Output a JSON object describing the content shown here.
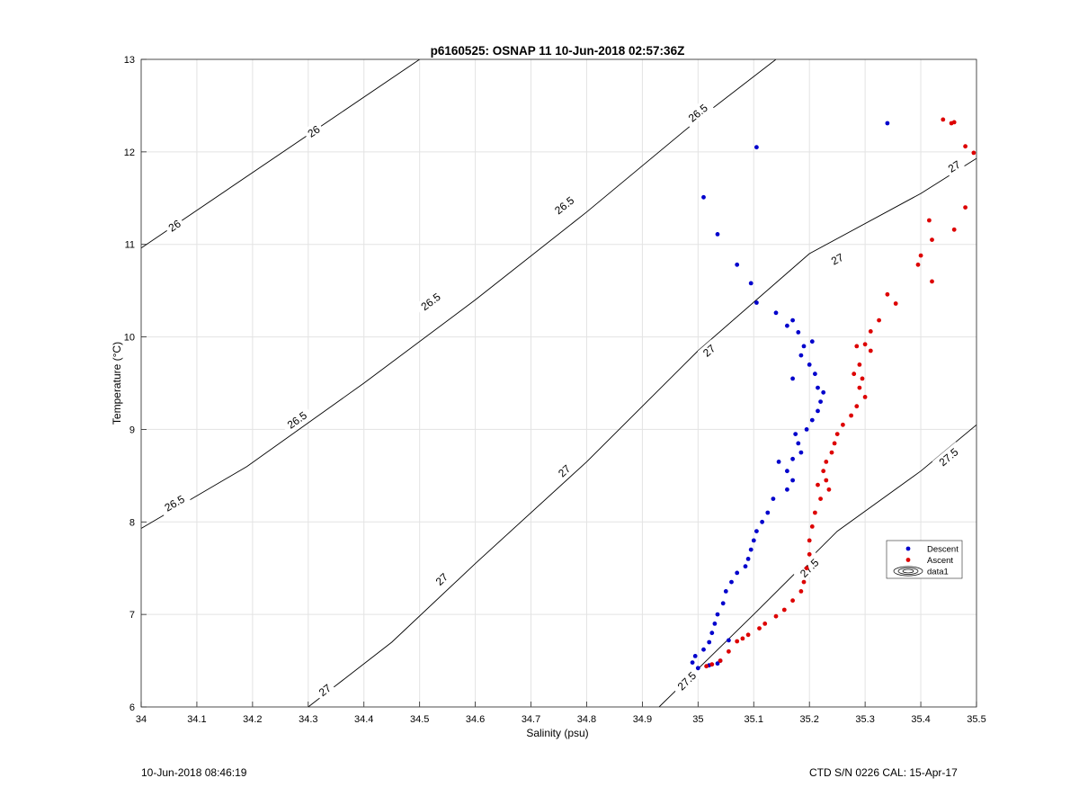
{
  "chart_data": {
    "type": "scatter",
    "title": "p6160525: OSNAP 11 10-Jun-2018 02:57:36Z",
    "xlabel": "Salinity (psu)",
    "ylabel": "Temperature (°C)",
    "xlim": [
      34,
      35.5
    ],
    "ylim": [
      6,
      13
    ],
    "xticks": [
      "34",
      "34.1",
      "34.2",
      "34.3",
      "34.4",
      "34.5",
      "34.6",
      "34.7",
      "34.8",
      "34.9",
      "35",
      "35.1",
      "35.2",
      "35.3",
      "35.4",
      "35.5"
    ],
    "yticks": [
      "6",
      "7",
      "8",
      "9",
      "10",
      "11",
      "12",
      "13"
    ],
    "grid": true,
    "legend_position": "right",
    "series": [
      {
        "name": "Descent",
        "color": "#0000cc",
        "points": [
          [
            35.34,
            12.31
          ],
          [
            35.105,
            12.05
          ],
          [
            35.01,
            11.51
          ],
          [
            35.035,
            11.11
          ],
          [
            35.07,
            10.78
          ],
          [
            35.095,
            10.58
          ],
          [
            35.105,
            10.37
          ],
          [
            35.14,
            10.26
          ],
          [
            35.16,
            10.12
          ],
          [
            35.17,
            10.18
          ],
          [
            35.18,
            10.05
          ],
          [
            35.19,
            9.9
          ],
          [
            35.205,
            9.95
          ],
          [
            35.185,
            9.8
          ],
          [
            35.2,
            9.7
          ],
          [
            35.21,
            9.6
          ],
          [
            35.17,
            9.55
          ],
          [
            35.215,
            9.45
          ],
          [
            35.225,
            9.4
          ],
          [
            35.22,
            9.3
          ],
          [
            35.215,
            9.2
          ],
          [
            35.205,
            9.1
          ],
          [
            35.195,
            9.0
          ],
          [
            35.175,
            8.95
          ],
          [
            35.18,
            8.85
          ],
          [
            35.185,
            8.75
          ],
          [
            35.17,
            8.68
          ],
          [
            35.145,
            8.65
          ],
          [
            35.16,
            8.55
          ],
          [
            35.17,
            8.45
          ],
          [
            35.16,
            8.35
          ],
          [
            35.135,
            8.25
          ],
          [
            35.125,
            8.1
          ],
          [
            35.115,
            8.0
          ],
          [
            35.105,
            7.9
          ],
          [
            35.1,
            7.8
          ],
          [
            35.095,
            7.7
          ],
          [
            35.09,
            7.6
          ],
          [
            35.085,
            7.52
          ],
          [
            35.07,
            7.45
          ],
          [
            35.06,
            7.35
          ],
          [
            35.05,
            7.25
          ],
          [
            35.045,
            7.12
          ],
          [
            35.035,
            7.0
          ],
          [
            35.03,
            6.9
          ],
          [
            35.025,
            6.8
          ],
          [
            35.02,
            6.7
          ],
          [
            35.01,
            6.62
          ],
          [
            34.995,
            6.55
          ],
          [
            34.99,
            6.48
          ],
          [
            35.0,
            6.42
          ],
          [
            35.02,
            6.45
          ],
          [
            35.035,
            6.47
          ],
          [
            35.055,
            6.72
          ],
          [
            35.04,
            6.5
          ]
        ]
      },
      {
        "name": "Ascent",
        "color": "#dd0000",
        "points": [
          [
            35.44,
            12.35
          ],
          [
            35.46,
            12.32
          ],
          [
            35.455,
            12.31
          ],
          [
            35.48,
            12.06
          ],
          [
            35.495,
            11.99
          ],
          [
            35.48,
            11.4
          ],
          [
            35.415,
            11.26
          ],
          [
            35.42,
            11.05
          ],
          [
            35.46,
            11.16
          ],
          [
            35.4,
            10.88
          ],
          [
            35.395,
            10.78
          ],
          [
            35.42,
            10.6
          ],
          [
            35.34,
            10.46
          ],
          [
            35.355,
            10.36
          ],
          [
            35.325,
            10.18
          ],
          [
            35.31,
            10.06
          ],
          [
            35.3,
            9.92
          ],
          [
            35.285,
            9.9
          ],
          [
            35.31,
            9.85
          ],
          [
            35.29,
            9.7
          ],
          [
            35.28,
            9.6
          ],
          [
            35.295,
            9.55
          ],
          [
            35.29,
            9.45
          ],
          [
            35.3,
            9.35
          ],
          [
            35.285,
            9.25
          ],
          [
            35.275,
            9.15
          ],
          [
            35.26,
            9.05
          ],
          [
            35.25,
            8.95
          ],
          [
            35.245,
            8.85
          ],
          [
            35.24,
            8.75
          ],
          [
            35.23,
            8.65
          ],
          [
            35.225,
            8.55
          ],
          [
            35.23,
            8.45
          ],
          [
            35.215,
            8.4
          ],
          [
            35.235,
            8.35
          ],
          [
            35.22,
            8.25
          ],
          [
            35.21,
            8.1
          ],
          [
            35.205,
            7.95
          ],
          [
            35.2,
            7.8
          ],
          [
            35.2,
            7.65
          ],
          [
            35.195,
            7.5
          ],
          [
            35.19,
            7.35
          ],
          [
            35.185,
            7.25
          ],
          [
            35.17,
            7.15
          ],
          [
            35.155,
            7.05
          ],
          [
            35.14,
            6.98
          ],
          [
            35.12,
            6.9
          ],
          [
            35.11,
            6.85
          ],
          [
            35.09,
            6.78
          ],
          [
            35.08,
            6.74
          ],
          [
            35.07,
            6.71
          ],
          [
            35.055,
            6.6
          ],
          [
            35.04,
            6.5
          ],
          [
            35.025,
            6.46
          ],
          [
            35.015,
            6.44
          ]
        ]
      }
    ],
    "density_contours": [
      {
        "label": "26",
        "line": [
          [
            34.0,
            10.96
          ],
          [
            34.5,
            13.0
          ]
        ],
        "label_positions": [
          [
            34.06,
            11.2
          ],
          [
            34.31,
            12.22
          ]
        ]
      },
      {
        "label": "26.5",
        "line": [
          [
            34.0,
            7.93
          ],
          [
            34.19,
            8.6
          ],
          [
            34.4,
            9.5
          ],
          [
            34.6,
            10.4
          ],
          [
            34.8,
            11.35
          ],
          [
            35.0,
            12.35
          ],
          [
            35.14,
            13.0
          ]
        ],
        "label_positions": [
          [
            34.06,
            8.2
          ],
          [
            34.28,
            9.1
          ],
          [
            34.52,
            10.38
          ],
          [
            34.76,
            11.42
          ],
          [
            35.0,
            12.42
          ]
        ]
      },
      {
        "label": "27",
        "line": [
          [
            34.3,
            6.0
          ],
          [
            34.45,
            6.7
          ],
          [
            34.6,
            7.55
          ],
          [
            34.8,
            8.65
          ],
          [
            35.0,
            9.85
          ],
          [
            35.2,
            10.9
          ],
          [
            35.4,
            11.55
          ],
          [
            35.5,
            11.93
          ]
        ],
        "label_positions": [
          [
            34.33,
            6.18
          ],
          [
            34.54,
            7.38
          ],
          [
            34.76,
            8.55
          ],
          [
            35.02,
            9.85
          ],
          [
            35.25,
            10.84
          ],
          [
            35.46,
            11.84
          ]
        ]
      },
      {
        "label": "27.5",
        "line": [
          [
            34.93,
            6.0
          ],
          [
            35.1,
            7.0
          ],
          [
            35.25,
            7.9
          ],
          [
            35.4,
            8.55
          ],
          [
            35.5,
            9.05
          ]
        ],
        "label_positions": [
          [
            34.98,
            6.28
          ],
          [
            35.2,
            7.5
          ],
          [
            35.45,
            8.7
          ]
        ]
      }
    ],
    "legend": [
      {
        "label": "Descent",
        "color": "#0000cc",
        "marker": "dot"
      },
      {
        "label": "Ascent",
        "color": "#dd0000",
        "marker": "dot"
      },
      {
        "label": "data1",
        "color": "#000000",
        "marker": "contour"
      }
    ]
  },
  "footer": {
    "left": "10-Jun-2018 08:46:19",
    "right": "CTD S/N 0226  CAL: 15-Apr-17"
  }
}
